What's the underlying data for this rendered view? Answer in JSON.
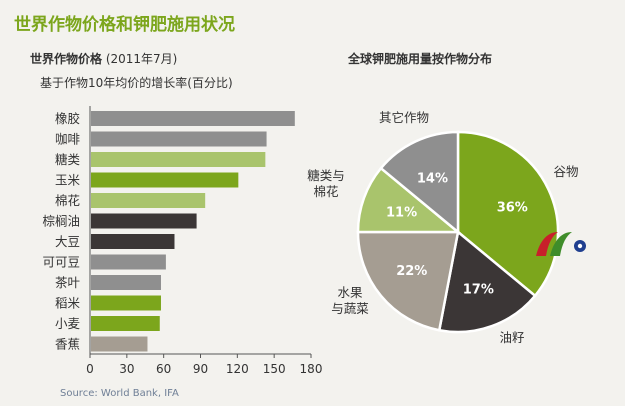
{
  "header": {
    "title": "世界作物价格和钾肥施用状况"
  },
  "bar_chart": {
    "title_bold": "世界作物价格",
    "title_date": " (2011年7月)",
    "subtitle": "基于作物10年均价的增长率(百分比)"
  },
  "pie_chart": {
    "title": "全球钾肥施用量按作物分布"
  },
  "source": "Source: World Bank, IFA",
  "colors": {
    "accent_green": "#7ca61c",
    "gray": "#8f8f8f",
    "light_green": "#a9c46c",
    "dark": "#3b3636",
    "taupe": "#a59d92"
  },
  "chart_data": [
    {
      "type": "bar",
      "orientation": "horizontal",
      "title": "世界作物价格 (2011年7月)",
      "subtitle": "基于作物10年均价的增长率(百分比)",
      "categories": [
        "橡胶",
        "咖啡",
        "糖类",
        "玉米",
        "棉花",
        "棕榈油",
        "大豆",
        "可可豆",
        "茶叶",
        "稻米",
        "小麦",
        "香蕉"
      ],
      "values": [
        166,
        143,
        142,
        120,
        93,
        86,
        68,
        61,
        57,
        57,
        56,
        46
      ],
      "bar_colors": [
        "#8f8f8f",
        "#8f8f8f",
        "#a9c46c",
        "#7ca61c",
        "#a9c46c",
        "#3b3636",
        "#3b3636",
        "#8f8f8f",
        "#8f8f8f",
        "#7ca61c",
        "#7ca61c",
        "#a59d92"
      ],
      "xlim": [
        0,
        180
      ],
      "xticks": [
        0,
        30,
        60,
        90,
        120,
        150,
        180
      ],
      "grid": false
    },
    {
      "type": "pie",
      "title": "全球钾肥施用量按作物分布",
      "slices": [
        {
          "label": "谷物",
          "value": 36,
          "value_label": "36%",
          "color": "#7ca61c"
        },
        {
          "label": "油籽",
          "value": 17,
          "value_label": "17%",
          "color": "#3b3636"
        },
        {
          "label": "水果与蔬菜",
          "value": 22,
          "value_label": "22%",
          "color": "#a59d92"
        },
        {
          "label": "糖类与棉花",
          "value": 11,
          "value_label": "11%",
          "color": "#a9c46c"
        },
        {
          "label": "其它作物",
          "value": 14,
          "value_label": "14%",
          "color": "#8f8f8f"
        }
      ]
    }
  ]
}
